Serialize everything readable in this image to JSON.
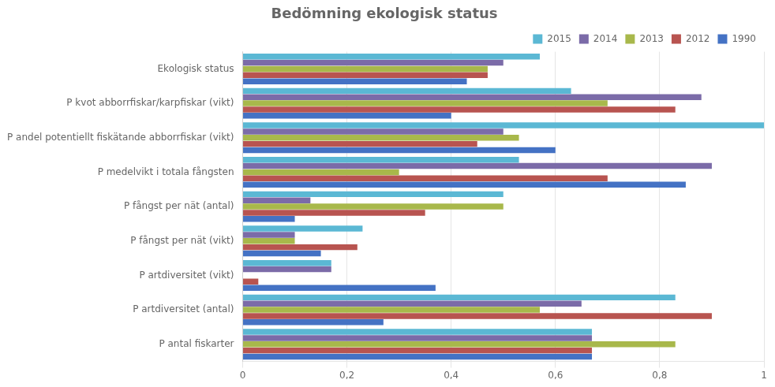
{
  "chart_data": {
    "type": "bar",
    "orientation": "horizontal",
    "title": "Bedömning ekologisk status",
    "categories": [
      "Ekologisk status",
      "P kvot abborrfiskar/karpfiskar (vikt)",
      "P andel potentiellt fiskätande abborrfiskar (vikt)",
      "P medelvikt i totala fångsten",
      "P fångst per nät (antal)",
      "P fångst per nät (vikt)",
      "P artdiversitet (vikt)",
      "P artdiversitet (antal)",
      "P antal fiskarter"
    ],
    "series": [
      {
        "name": "2015",
        "color": "#5BB8D4",
        "values": [
          0.57,
          0.63,
          1.0,
          0.53,
          0.5,
          0.23,
          0.17,
          0.83,
          0.67
        ]
      },
      {
        "name": "2014",
        "color": "#7B6BA8",
        "values": [
          0.5,
          0.88,
          0.5,
          0.9,
          0.13,
          0.1,
          0.17,
          0.65,
          0.67
        ]
      },
      {
        "name": "2013",
        "color": "#A8B84B",
        "values": [
          0.47,
          0.7,
          0.53,
          0.3,
          0.5,
          0.1,
          0.0,
          0.57,
          0.83
        ]
      },
      {
        "name": "2012",
        "color": "#B85450",
        "values": [
          0.47,
          0.83,
          0.45,
          0.7,
          0.35,
          0.22,
          0.03,
          0.9,
          0.67
        ]
      },
      {
        "name": "1990",
        "color": "#4472C4",
        "values": [
          0.43,
          0.4,
          0.6,
          0.85,
          0.1,
          0.15,
          0.37,
          0.27,
          0.67
        ]
      }
    ],
    "xlim": [
      0,
      1
    ],
    "xticks": [
      0,
      {
        "value": 0.2,
        "label": "0,2"
      },
      {
        "value": 0.4,
        "label": "0,4"
      },
      {
        "value": 0.6,
        "label": "0,6"
      },
      {
        "value": 0.8,
        "label": "0,8"
      },
      1
    ],
    "grid": true,
    "legend": "upper right"
  }
}
